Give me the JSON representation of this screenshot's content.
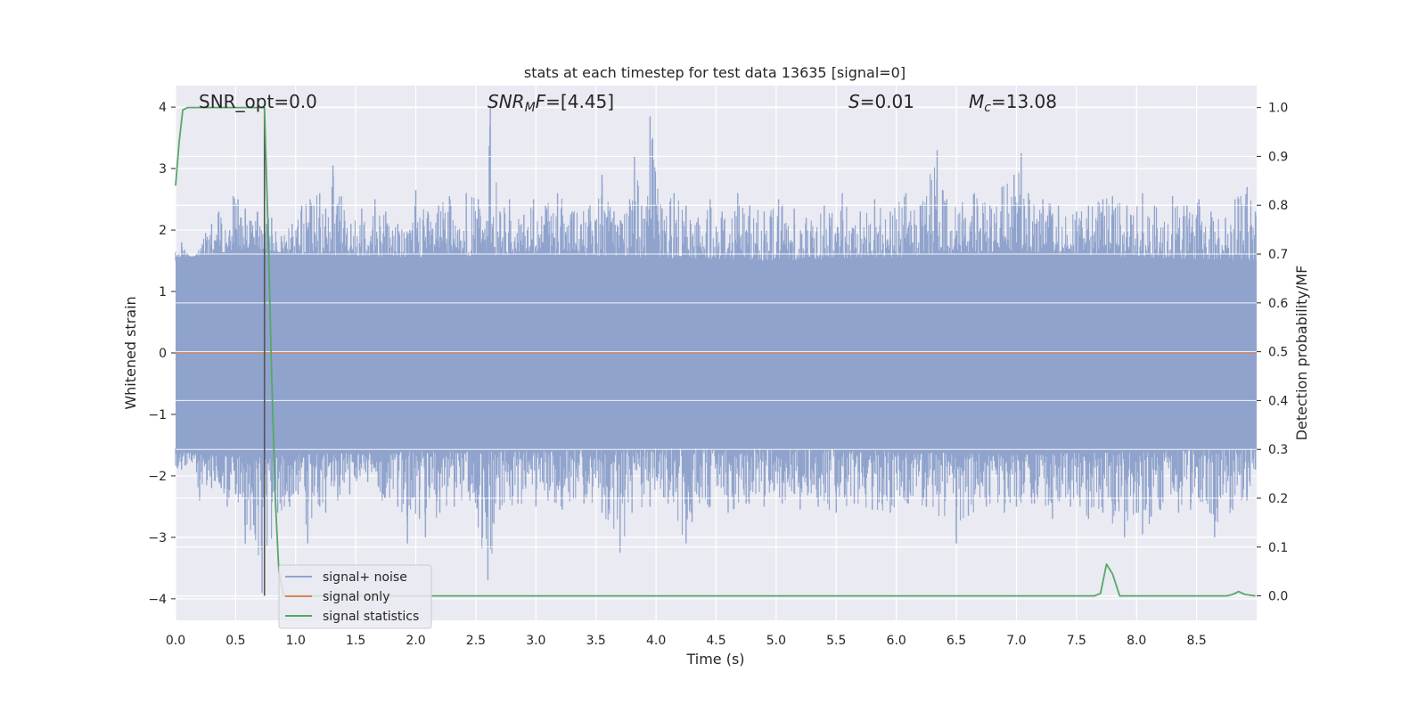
{
  "chart_data": {
    "type": "line",
    "title": "stats at each timestep for test data 13635 [signal=0]",
    "xlabel": "Time (s)",
    "ylabel": "Whitened strain",
    "ylabel_right": "Detection probability/MF",
    "xlim": [
      0.0,
      9.0
    ],
    "ylim": [
      -4.35,
      4.35
    ],
    "ylim_right": [
      -0.05,
      1.045
    ],
    "x_ticks": [
      0.0,
      0.5,
      1.0,
      1.5,
      2.0,
      2.5,
      3.0,
      3.5,
      4.0,
      4.5,
      5.0,
      5.5,
      6.0,
      6.5,
      7.0,
      7.5,
      8.0,
      8.5
    ],
    "x_tick_labels": [
      "0.0",
      "0.5",
      "1.0",
      "1.5",
      "2.0",
      "2.5",
      "3.0",
      "3.5",
      "4.0",
      "4.5",
      "5.0",
      "5.5",
      "6.0",
      "6.5",
      "7.0",
      "7.5",
      "8.0",
      "8.5"
    ],
    "y_ticks": [
      4,
      3,
      2,
      1,
      0,
      -1,
      -2,
      -3,
      -4
    ],
    "y_tick_labels": [
      "4",
      "3",
      "2",
      "1",
      "0",
      "−1",
      "−2",
      "−3",
      "−4"
    ],
    "y_ticks_right": [
      1.0,
      0.9,
      0.8,
      0.7,
      0.6,
      0.5,
      0.4,
      0.3,
      0.2,
      0.1,
      0.0
    ],
    "y_tick_labels_right": [
      "1.0",
      "0.9",
      "0.8",
      "0.7",
      "0.6",
      "0.5",
      "0.4",
      "0.3",
      "0.2",
      "0.1",
      "0.0"
    ],
    "grid": true,
    "legend_position": "lower-left",
    "annotations": [
      {
        "id": "snr-opt",
        "text": "SNR_opt=0.0"
      },
      {
        "id": "snr-mf",
        "text": "SNR_MF=[4.45]",
        "parts": [
          {
            "t": "SNR",
            "style": "italic"
          },
          {
            "t": "M",
            "style": "italic-sub"
          },
          {
            "t": "F",
            "style": "italic"
          },
          {
            "t": "=[4.45]",
            "style": "normal"
          }
        ]
      },
      {
        "id": "stat-s",
        "text": "S=0.01",
        "parts": [
          {
            "t": "S",
            "style": "italic"
          },
          {
            "t": "=0.01",
            "style": "normal"
          }
        ]
      },
      {
        "id": "chirp-mass",
        "text": "Mc=13.08",
        "parts": [
          {
            "t": "M",
            "style": "italic"
          },
          {
            "t": "c",
            "style": "italic-sub"
          },
          {
            "t": "=13.08",
            "style": "normal"
          }
        ]
      }
    ],
    "colors": {
      "plot_bg": "#eaeaf2",
      "grid": "#ffffff",
      "noise": "#8fa3cc",
      "signal": "#dd8452",
      "stats": "#55a868",
      "marker": "#555555"
    },
    "series": [
      {
        "name": "signal+ noise",
        "axis": "left",
        "style": "noise-band",
        "color": "#8fa3cc",
        "band_upper": [
          [
            0.0,
            1.55
          ],
          [
            0.3,
            1.6
          ],
          [
            0.6,
            1.7
          ],
          [
            1.0,
            1.6
          ],
          [
            2.0,
            1.55
          ],
          [
            3.0,
            1.6
          ],
          [
            4.0,
            1.55
          ],
          [
            5.0,
            1.5
          ],
          [
            6.0,
            1.55
          ],
          [
            7.0,
            1.65
          ],
          [
            8.0,
            1.55
          ],
          [
            9.0,
            1.5
          ]
        ],
        "band_lower": [
          [
            0.0,
            -1.6
          ],
          [
            0.6,
            -1.7
          ],
          [
            1.0,
            -1.65
          ],
          [
            2.0,
            -1.6
          ],
          [
            3.0,
            -1.6
          ],
          [
            4.0,
            -1.55
          ],
          [
            5.0,
            -1.55
          ],
          [
            6.0,
            -1.6
          ],
          [
            7.0,
            -1.65
          ],
          [
            8.0,
            -1.6
          ],
          [
            9.0,
            -1.55
          ]
        ],
        "peaks": [
          [
            0.05,
            1.8
          ],
          [
            0.14,
            1.5
          ],
          [
            0.25,
            1.95
          ],
          [
            0.3,
            2.1
          ],
          [
            0.36,
            2.3
          ],
          [
            0.45,
            2.0
          ],
          [
            0.48,
            2.55
          ],
          [
            0.52,
            2.5
          ],
          [
            0.58,
            2.35
          ],
          [
            0.62,
            2.15
          ],
          [
            0.68,
            2.3
          ],
          [
            0.8,
            2.2
          ],
          [
            0.88,
            1.9
          ],
          [
            0.97,
            2.1
          ],
          [
            1.05,
            2.4
          ],
          [
            1.12,
            2.5
          ],
          [
            1.2,
            2.6
          ],
          [
            1.25,
            2.35
          ],
          [
            1.31,
            3.05
          ],
          [
            1.38,
            2.55
          ],
          [
            1.46,
            2.1
          ],
          [
            1.55,
            2.35
          ],
          [
            1.66,
            2.5
          ],
          [
            1.75,
            2.3
          ],
          [
            1.85,
            2.1
          ],
          [
            1.95,
            2.0
          ],
          [
            2.0,
            2.65
          ],
          [
            2.1,
            2.3
          ],
          [
            2.19,
            2.4
          ],
          [
            2.28,
            2.55
          ],
          [
            2.35,
            2.0
          ],
          [
            2.42,
            2.6
          ],
          [
            2.52,
            2.5
          ],
          [
            2.59,
            2.15
          ],
          [
            2.62,
            4.0
          ],
          [
            2.7,
            2.3
          ],
          [
            2.78,
            2.5
          ],
          [
            2.9,
            2.25
          ],
          [
            2.98,
            2.5
          ],
          [
            3.08,
            2.4
          ],
          [
            3.18,
            2.6
          ],
          [
            3.3,
            2.3
          ],
          [
            3.45,
            2.4
          ],
          [
            3.55,
            2.9
          ],
          [
            3.65,
            2.3
          ],
          [
            3.78,
            2.5
          ],
          [
            3.82,
            3.2
          ],
          [
            3.88,
            2.4
          ],
          [
            3.95,
            3.85
          ],
          [
            4.05,
            2.35
          ],
          [
            4.15,
            2.6
          ],
          [
            4.25,
            2.4
          ],
          [
            4.35,
            2.2
          ],
          [
            4.45,
            2.5
          ],
          [
            4.55,
            2.3
          ],
          [
            4.68,
            2.6
          ],
          [
            4.78,
            2.4
          ],
          [
            4.9,
            2.3
          ],
          [
            5.02,
            2.5
          ],
          [
            5.15,
            2.35
          ],
          [
            5.25,
            2.2
          ],
          [
            5.4,
            2.4
          ],
          [
            5.55,
            2.6
          ],
          [
            5.7,
            2.3
          ],
          [
            5.82,
            2.5
          ],
          [
            5.95,
            2.3
          ],
          [
            6.08,
            2.6
          ],
          [
            6.2,
            2.4
          ],
          [
            6.34,
            3.3
          ],
          [
            6.42,
            2.5
          ],
          [
            6.55,
            2.45
          ],
          [
            6.65,
            2.6
          ],
          [
            6.78,
            2.4
          ],
          [
            6.88,
            2.7
          ],
          [
            6.98,
            2.9
          ],
          [
            7.04,
            3.25
          ],
          [
            7.1,
            2.6
          ],
          [
            7.22,
            2.5
          ],
          [
            7.35,
            2.4
          ],
          [
            7.5,
            2.3
          ],
          [
            7.6,
            2.4
          ],
          [
            7.72,
            2.5
          ],
          [
            7.8,
            2.55
          ],
          [
            7.92,
            2.4
          ],
          [
            8.05,
            2.6
          ],
          [
            8.15,
            2.4
          ],
          [
            8.3,
            2.55
          ],
          [
            8.42,
            2.4
          ],
          [
            8.52,
            2.5
          ],
          [
            8.62,
            2.3
          ],
          [
            8.74,
            2.2
          ],
          [
            8.82,
            2.5
          ],
          [
            8.92,
            2.7
          ],
          [
            8.99,
            2.3
          ]
        ],
        "troughs": [
          [
            0.05,
            -1.9
          ],
          [
            0.13,
            -1.75
          ],
          [
            0.2,
            -2.4
          ],
          [
            0.3,
            -2.2
          ],
          [
            0.38,
            -2.2
          ],
          [
            0.43,
            -2.5
          ],
          [
            0.5,
            -2.3
          ],
          [
            0.58,
            -3.1
          ],
          [
            0.65,
            -2.8
          ],
          [
            0.72,
            -3.9
          ],
          [
            0.85,
            -2.6
          ],
          [
            0.95,
            -2.5
          ],
          [
            1.02,
            -2.3
          ],
          [
            1.1,
            -3.1
          ],
          [
            1.2,
            -2.5
          ],
          [
            1.25,
            -2.6
          ],
          [
            1.35,
            -2.4
          ],
          [
            1.45,
            -2.3
          ],
          [
            1.6,
            -2.1
          ],
          [
            1.72,
            -2.4
          ],
          [
            1.85,
            -2.5
          ],
          [
            1.93,
            -3.1
          ],
          [
            2.03,
            -2.7
          ],
          [
            2.08,
            -3.0
          ],
          [
            2.2,
            -2.6
          ],
          [
            2.32,
            -2.5
          ],
          [
            2.45,
            -2.4
          ],
          [
            2.6,
            -3.7
          ],
          [
            2.7,
            -2.55
          ],
          [
            2.85,
            -2.45
          ],
          [
            3.0,
            -2.5
          ],
          [
            3.1,
            -2.4
          ],
          [
            3.22,
            -2.55
          ],
          [
            3.4,
            -2.45
          ],
          [
            3.55,
            -2.6
          ],
          [
            3.7,
            -3.25
          ],
          [
            3.8,
            -2.6
          ],
          [
            3.95,
            -2.5
          ],
          [
            4.1,
            -2.45
          ],
          [
            4.25,
            -3.1
          ],
          [
            4.3,
            -2.75
          ],
          [
            4.45,
            -2.5
          ],
          [
            4.6,
            -2.6
          ],
          [
            4.75,
            -2.45
          ],
          [
            4.9,
            -2.5
          ],
          [
            5.05,
            -2.45
          ],
          [
            5.2,
            -2.55
          ],
          [
            5.35,
            -2.5
          ],
          [
            5.5,
            -2.6
          ],
          [
            5.65,
            -2.45
          ],
          [
            5.8,
            -2.55
          ],
          [
            5.95,
            -2.6
          ],
          [
            6.1,
            -2.45
          ],
          [
            6.25,
            -2.5
          ],
          [
            6.5,
            -3.1
          ],
          [
            6.6,
            -2.65
          ],
          [
            6.75,
            -2.5
          ],
          [
            6.9,
            -2.6
          ],
          [
            7.0,
            -2.5
          ],
          [
            7.15,
            -2.45
          ],
          [
            7.3,
            -2.7
          ],
          [
            7.45,
            -2.5
          ],
          [
            7.6,
            -2.7
          ],
          [
            7.72,
            -2.6
          ],
          [
            7.9,
            -3.0
          ],
          [
            8.0,
            -2.6
          ],
          [
            8.05,
            -2.95
          ],
          [
            8.2,
            -2.55
          ],
          [
            8.35,
            -2.6
          ],
          [
            8.45,
            -2.55
          ],
          [
            8.58,
            -2.4
          ],
          [
            8.65,
            -3.0
          ],
          [
            8.8,
            -2.55
          ],
          [
            8.92,
            -2.4
          ],
          [
            8.99,
            -1.9
          ]
        ]
      },
      {
        "name": "signal only",
        "axis": "left",
        "color": "#dd8452",
        "points": [
          [
            0.0,
            0.0
          ],
          [
            9.0,
            0.0
          ]
        ]
      },
      {
        "name": "signal statistics",
        "axis": "right",
        "color": "#55a868",
        "points": [
          [
            0.0,
            0.84
          ],
          [
            0.03,
            0.93
          ],
          [
            0.06,
            0.995
          ],
          [
            0.1,
            1.0
          ],
          [
            0.2,
            1.0
          ],
          [
            0.3,
            1.0
          ],
          [
            0.4,
            1.0
          ],
          [
            0.5,
            1.0
          ],
          [
            0.6,
            1.0
          ],
          [
            0.7,
            1.0
          ],
          [
            0.74,
            1.0
          ],
          [
            0.77,
            0.75
          ],
          [
            0.8,
            0.45
          ],
          [
            0.83,
            0.2
          ],
          [
            0.86,
            0.05
          ],
          [
            0.9,
            0.0
          ],
          [
            1.0,
            0.0
          ],
          [
            2.0,
            0.0
          ],
          [
            3.0,
            0.0
          ],
          [
            4.0,
            0.0
          ],
          [
            5.0,
            0.0
          ],
          [
            6.0,
            0.0
          ],
          [
            7.0,
            0.0
          ],
          [
            7.65,
            0.0
          ],
          [
            7.7,
            0.005
          ],
          [
            7.75,
            0.065
          ],
          [
            7.8,
            0.045
          ],
          [
            7.86,
            0.0
          ],
          [
            8.0,
            0.0
          ],
          [
            8.5,
            0.0
          ],
          [
            8.75,
            0.0
          ],
          [
            8.8,
            0.003
          ],
          [
            8.85,
            0.009
          ],
          [
            8.9,
            0.003
          ],
          [
            8.99,
            0.0
          ]
        ]
      }
    ],
    "markers": [
      {
        "type": "vline",
        "x": 0.74,
        "y_from": -3.95,
        "y_to": 4.0
      }
    ]
  }
}
